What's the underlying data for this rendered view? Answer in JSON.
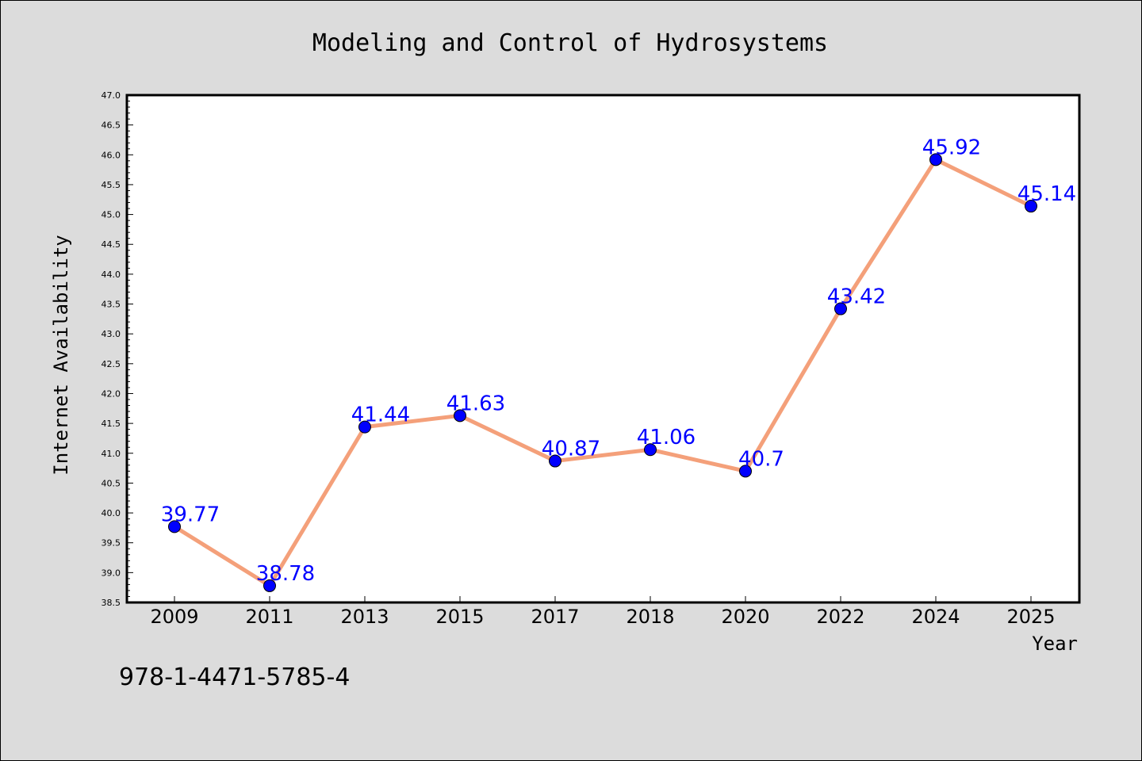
{
  "chart_data": {
    "type": "line",
    "title": "Modeling and Control of Hydrosystems",
    "xlabel": "Year",
    "ylabel": "Internet Availability",
    "categories": [
      "2009",
      "2011",
      "2013",
      "2015",
      "2017",
      "2018",
      "2020",
      "2022",
      "2024",
      "2025"
    ],
    "series": [
      {
        "values": [
          39.77,
          38.78,
          41.44,
          41.63,
          40.87,
          41.06,
          40.7,
          43.42,
          45.92,
          45.14
        ],
        "labels": [
          "39.77",
          "38.78",
          "41.44",
          "41.63",
          "40.87",
          "41.06",
          "40.7",
          "43.42",
          "45.92",
          "45.14"
        ]
      }
    ],
    "ylim": [
      38.5,
      47.0
    ],
    "yticks": [
      "38.5",
      "39.0",
      "39.5",
      "40.0",
      "40.5",
      "41.0",
      "41.5",
      "42.0",
      "42.5",
      "43.0",
      "43.5",
      "44.0",
      "44.5",
      "45.0",
      "45.5",
      "46.0",
      "46.5",
      "47.0"
    ],
    "grid": false,
    "colors": {
      "line": "#f4a07a",
      "marker": "#0000ff",
      "data_label": "#0000ff",
      "plot_background": "#ffffff",
      "figure_background": "#dcdcdc"
    }
  },
  "footer_text": "978-1-4471-5785-4"
}
